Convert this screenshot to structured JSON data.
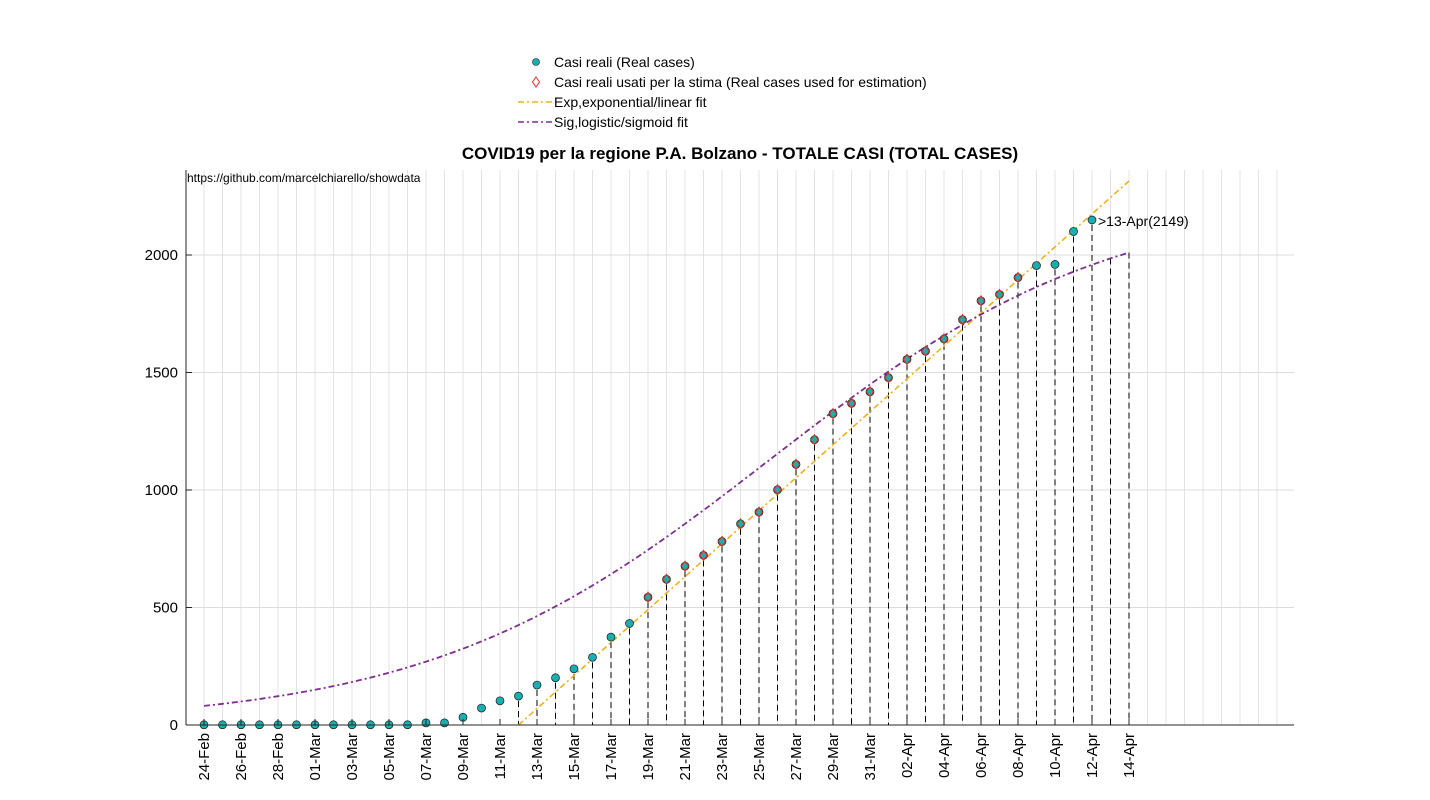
{
  "chart_data": {
    "type": "scatter",
    "title": "COVID19 per la regione P.A. Bolzano - TOTALE CASI (TOTAL CASES)",
    "source_text": "https://github.com/marcelchiarello/showdata",
    "xlabel": "",
    "ylabel": "",
    "ylim": [
      0,
      2000
    ],
    "yticks": [
      "0",
      "500",
      "1000",
      "1500",
      "2000"
    ],
    "grid": true,
    "legend_position": "top-center",
    "x_start_date": "24-Feb",
    "xticks": [
      "24-Feb",
      "26-Feb",
      "28-Feb",
      "01-Mar",
      "03-Mar",
      "05-Mar",
      "07-Mar",
      "09-Mar",
      "11-Mar",
      "13-Mar",
      "15-Mar",
      "17-Mar",
      "19-Mar",
      "21-Mar",
      "23-Mar",
      "25-Mar",
      "27-Mar",
      "29-Mar",
      "31-Mar",
      "02-Apr",
      "04-Apr",
      "06-Apr",
      "08-Apr",
      "10-Apr",
      "12-Apr",
      "14-Apr"
    ],
    "real_cases": [
      1,
      1,
      1,
      1,
      1,
      1,
      1,
      1,
      1,
      1,
      1,
      1,
      9,
      9,
      33,
      72,
      103,
      123,
      170,
      201,
      239,
      288,
      374,
      432,
      544,
      620,
      676,
      722,
      781,
      856,
      906,
      1001,
      1109,
      1214,
      1325,
      1369,
      1418,
      1478,
      1556,
      1591,
      1643,
      1725,
      1805,
      1832,
      1904,
      1955,
      1960,
      2100,
      2149
    ],
    "estimation_used": [
      24,
      25,
      26,
      27,
      28,
      29,
      30,
      31,
      32,
      33,
      34,
      35,
      36,
      37,
      38,
      39,
      40,
      41,
      42,
      43,
      44
    ],
    "annotation": ">13-Apr(2149)",
    "series": [
      {
        "name": "Casi reali (Real cases)",
        "color": "#1aaeb0",
        "marker": "circle"
      },
      {
        "name": "Casi reali usati per la stima (Real cases used for estimation)",
        "color": "#e0302a",
        "marker": "diamond"
      },
      {
        "name": "Exp,exponential/linear fit",
        "color": "#edb120",
        "style": "dash-dot"
      },
      {
        "name": "Sig,logistic/sigmoid fit",
        "color": "#7e2f8e",
        "style": "dash-dot"
      }
    ],
    "linear_fit": {
      "from": [
        17,
        0
      ],
      "to": [
        50,
        2315
      ]
    },
    "sigmoid_fit": {
      "k": 0.1075,
      "x0": 30.6,
      "L": 2260
    }
  }
}
